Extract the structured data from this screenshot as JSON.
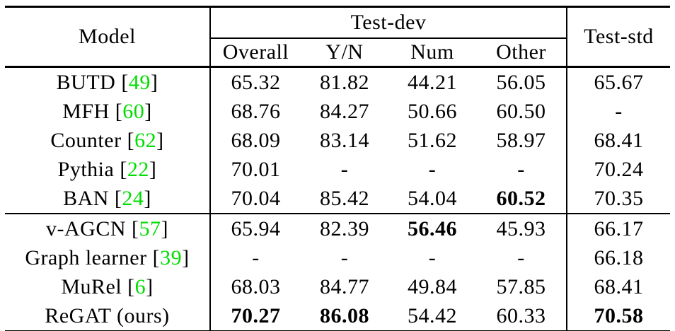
{
  "colors": {
    "citation": "#00dd00",
    "text": "#000000",
    "rule": "#000000",
    "background": "#ffffff"
  },
  "table": {
    "header": {
      "model": "Model",
      "test_dev": "Test-dev",
      "test_std": "Test-std",
      "sub_columns": [
        "Overall",
        "Y/N",
        "Num",
        "Other"
      ]
    },
    "rows": [
      {
        "prefix": "BUTD [",
        "cite": "49",
        "suffix": "]",
        "values": [
          "65.32",
          "81.82",
          "44.21",
          "56.05",
          "65.67"
        ],
        "bold": [
          false,
          false,
          false,
          false,
          false
        ]
      },
      {
        "prefix": "MFH [",
        "cite": "60",
        "suffix": "]",
        "values": [
          "68.76",
          "84.27",
          "50.66",
          "60.50",
          "-"
        ],
        "bold": [
          false,
          false,
          false,
          false,
          false
        ]
      },
      {
        "prefix": "Counter [",
        "cite": "62",
        "suffix": "]",
        "values": [
          "68.09",
          "83.14",
          "51.62",
          "58.97",
          "68.41"
        ],
        "bold": [
          false,
          false,
          false,
          false,
          false
        ]
      },
      {
        "prefix": "Pythia [",
        "cite": "22",
        "suffix": "]",
        "values": [
          "70.01",
          "-",
          "-",
          "-",
          "70.24"
        ],
        "bold": [
          false,
          false,
          false,
          false,
          false
        ]
      },
      {
        "prefix": "BAN [",
        "cite": "24",
        "suffix": "]",
        "values": [
          "70.04",
          "85.42",
          "54.04",
          "60.52",
          "70.35"
        ],
        "bold": [
          false,
          false,
          false,
          true,
          false
        ]
      },
      {
        "prefix": "v-AGCN [",
        "cite": "57",
        "suffix": "]",
        "values": [
          "65.94",
          "82.39",
          "56.46",
          "45.93",
          "66.17"
        ],
        "bold": [
          false,
          false,
          true,
          false,
          false
        ]
      },
      {
        "prefix": "Graph learner [",
        "cite": "39",
        "suffix": "]",
        "values": [
          "-",
          "-",
          "-",
          "-",
          "66.18"
        ],
        "bold": [
          false,
          false,
          false,
          false,
          false
        ]
      },
      {
        "prefix": "MuRel [",
        "cite": "6",
        "suffix": "]",
        "values": [
          "68.03",
          "84.77",
          "49.84",
          "57.85",
          "68.41"
        ],
        "bold": [
          false,
          false,
          false,
          false,
          false
        ]
      },
      {
        "prefix": "ReGAT (ours)",
        "cite": "",
        "suffix": "",
        "values": [
          "70.27",
          "86.08",
          "54.42",
          "60.33",
          "70.58"
        ],
        "bold": [
          true,
          true,
          false,
          false,
          true
        ]
      }
    ]
  },
  "chart_data": {
    "type": "table",
    "title": "",
    "columns": [
      "Model",
      "Test-dev Overall",
      "Test-dev Y/N",
      "Test-dev Num",
      "Test-dev Other",
      "Test-std"
    ],
    "rows": [
      [
        "BUTD [49]",
        65.32,
        81.82,
        44.21,
        56.05,
        65.67
      ],
      [
        "MFH [60]",
        68.76,
        84.27,
        50.66,
        60.5,
        null
      ],
      [
        "Counter [62]",
        68.09,
        83.14,
        51.62,
        58.97,
        68.41
      ],
      [
        "Pythia [22]",
        70.01,
        null,
        null,
        null,
        70.24
      ],
      [
        "BAN [24]",
        70.04,
        85.42,
        54.04,
        60.52,
        70.35
      ],
      [
        "v-AGCN [57]",
        65.94,
        82.39,
        56.46,
        45.93,
        66.17
      ],
      [
        "Graph learner [39]",
        null,
        null,
        null,
        null,
        66.18
      ],
      [
        "MuRel [6]",
        68.03,
        84.77,
        49.84,
        57.85,
        68.41
      ],
      [
        "ReGAT (ours)",
        70.27,
        86.08,
        54.42,
        60.33,
        70.58
      ]
    ]
  }
}
